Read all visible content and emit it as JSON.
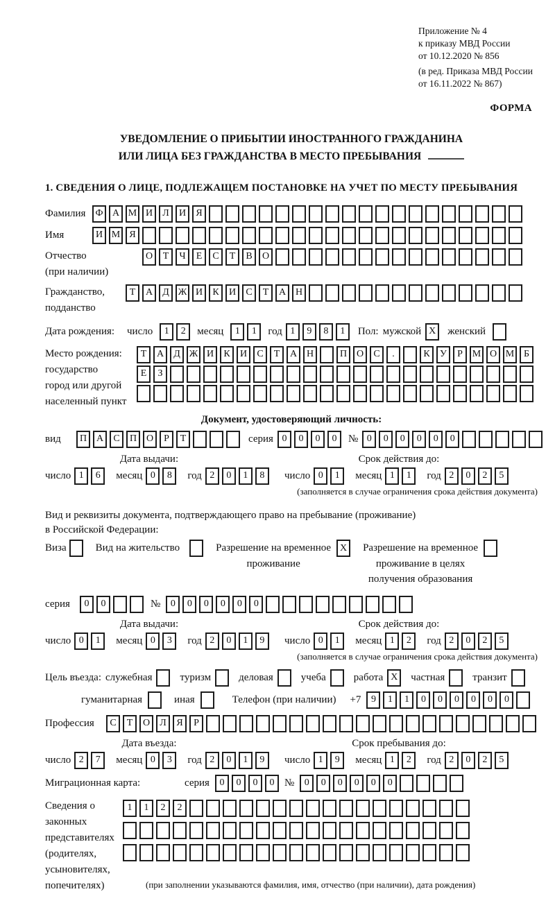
{
  "labels": {
    "day": "число",
    "month": "месяц",
    "year": "год",
    "seriya": "серия",
    "num": "№"
  },
  "header": {
    "line1": "Приложение № 4",
    "line2": "к приказу МВД России",
    "line3": "от 10.12.2020 № 856",
    "line4": "(в ред. Приказа МВД России",
    "line5": "от 16.11.2022 № 867)",
    "forma": "ФОРМА"
  },
  "title": {
    "line1": "УВЕДОМЛЕНИЕ О ПРИБЫТИИ ИНОСТРАННОГО ГРАЖДАНИНА",
    "line2": "ИЛИ ЛИЦА БЕЗ ГРАЖДАНСТВА В МЕСТО ПРЕБЫВАНИЯ"
  },
  "section1_heading": "1. СВЕДЕНИЯ О ЛИЦЕ, ПОДЛЕЖАЩЕМ ПОСТАНОВКЕ НА УЧЕТ ПО МЕСТУ ПРЕБЫВАНИЯ",
  "person": {
    "surname": {
      "label": "Фамилия",
      "cells": {
        "value": "ФАМИЛИЯ",
        "len": 26
      }
    },
    "name": {
      "label": "Имя",
      "cells": {
        "value": "ИМЯ",
        "len": 26
      }
    },
    "patronymic": {
      "label1": "Отчество",
      "label2": "(при наличии)",
      "cells": {
        "value": "ОТЧЕСТВО",
        "len": 23
      }
    },
    "citizenship": {
      "label1": "Гражданство,",
      "label2": "подданство",
      "cells": {
        "value": "ТАДЖИКИСТАН",
        "len": 24
      }
    }
  },
  "birth": {
    "label": "Дата рождения:",
    "d": {
      "value": "12",
      "len": 2
    },
    "m": {
      "value": "11",
      "len": 2
    },
    "y": {
      "value": "1981",
      "len": 4
    },
    "sex_label": "Пол:",
    "male_label": "мужской",
    "male": {
      "value": "X",
      "len": 1
    },
    "female_label": "женский",
    "female": {
      "value": "",
      "len": 1
    }
  },
  "birthplace": {
    "label1": "Место рождения:",
    "label2": "государство",
    "label3": "город или другой",
    "label4": "населенный пункт",
    "row1": {
      "value": "ТАДЖИКИСТАН ПОС. КУРМОМБ",
      "len": 24
    },
    "row2": {
      "value": "ЕЗ",
      "len": 24
    },
    "row3": {
      "value": "",
      "len": 24
    }
  },
  "identity": {
    "heading": "Документ, удостоверяющий личность:",
    "vid_label": "вид",
    "vid": {
      "value": "ПАСПОРТ",
      "len": 10
    },
    "seriya": {
      "value": "0000",
      "len": 4
    },
    "number": {
      "value": "000000",
      "len": 11
    },
    "issued_title": "Дата выдачи:",
    "valid_title": "Срок действия до:",
    "issued": {
      "d": {
        "value": "16",
        "len": 2
      },
      "m": {
        "value": "08",
        "len": 2
      },
      "y": {
        "value": "2018",
        "len": 4
      }
    },
    "valid": {
      "d": {
        "value": "01",
        "len": 2
      },
      "m": {
        "value": "11",
        "len": 2
      },
      "y": {
        "value": "2025",
        "len": 4
      }
    },
    "note": "(заполняется в случае ограничения срока действия документа)"
  },
  "residence": {
    "line1": "Вид и реквизиты документа, подтверждающего право на пребывание (проживание)",
    "line2": "в Российской Федерации:",
    "options": [
      {
        "lines": [
          "Виза"
        ],
        "box": {
          "value": "",
          "len": 1
        }
      },
      {
        "lines": [
          "Вид на жительство"
        ],
        "box": {
          "value": "",
          "len": 1
        }
      },
      {
        "lines": [
          "Разрешение на временное",
          "проживание"
        ],
        "box": {
          "value": "X",
          "len": 1
        }
      },
      {
        "lines": [
          "Разрешение на временное",
          "проживание в целях",
          "получения образования"
        ],
        "box": {
          "value": "",
          "len": 1
        }
      }
    ],
    "seriya": {
      "value": "00",
      "len": 4
    },
    "number": {
      "value": "000000",
      "len": 15
    },
    "issued_title": "Дата выдачи:",
    "valid_title": "Срок действия до:",
    "issued": {
      "d": {
        "value": "01",
        "len": 2
      },
      "m": {
        "value": "03",
        "len": 2
      },
      "y": {
        "value": "2019",
        "len": 4
      }
    },
    "valid": {
      "d": {
        "value": "01",
        "len": 2
      },
      "m": {
        "value": "12",
        "len": 2
      },
      "y": {
        "value": "2025",
        "len": 4
      }
    },
    "note": "(заполняется в случае ограничения срока действия документа)"
  },
  "visit": {
    "label": "Цель въезда:",
    "purposes": [
      {
        "label": "служебная",
        "box": {
          "value": "",
          "len": 1
        }
      },
      {
        "label": "туризм",
        "box": {
          "value": "",
          "len": 1
        }
      },
      {
        "label": "деловая",
        "box": {
          "value": "",
          "len": 1
        }
      },
      {
        "label": "учеба",
        "box": {
          "value": "",
          "len": 1
        }
      },
      {
        "label": "работа",
        "box": {
          "value": "X",
          "len": 1
        }
      },
      {
        "label": "частная",
        "box": {
          "value": "",
          "len": 1
        }
      },
      {
        "label": "транзит",
        "box": {
          "value": "",
          "len": 1
        }
      },
      {
        "label": "гуманитарная",
        "box": {
          "value": "",
          "len": 1
        }
      },
      {
        "label": "иная",
        "box": {
          "value": "",
          "len": 1
        }
      }
    ],
    "phone_label": "Телефон (при наличии)",
    "phone_prefix": "+7",
    "phone": {
      "value": "911000000",
      "len": 10
    }
  },
  "profession": {
    "label": "Профессия",
    "cells": {
      "value": "СТОЛЯР",
      "len": 26
    }
  },
  "entry": {
    "entry_title": "Дата въезда:",
    "stay_title": "Срок пребывания до:",
    "entry": {
      "d": {
        "value": "27",
        "len": 2
      },
      "m": {
        "value": "03",
        "len": 2
      },
      "y": {
        "value": "2019",
        "len": 4
      }
    },
    "stay": {
      "d": {
        "value": "19",
        "len": 2
      },
      "m": {
        "value": "12",
        "len": 2
      },
      "y": {
        "value": "2025",
        "len": 4
      }
    }
  },
  "migration": {
    "label": "Миграционная карта:",
    "seriya": {
      "value": "0000",
      "len": 4
    },
    "number": {
      "value": "000000",
      "len": 10
    }
  },
  "representatives": {
    "label1": "Сведения о",
    "label2": "законных",
    "label3": "представителях",
    "label4": "(родителях,",
    "label5": "усыновителях,",
    "label6": "попечителях)",
    "row1": {
      "value": "1122",
      "len": 21
    },
    "row2": {
      "value": "",
      "len": 21
    },
    "row3": {
      "value": "",
      "len": 21
    },
    "note": "(при заполнении указываются фамилия, имя, отчество (при наличии), дата рождения)"
  }
}
